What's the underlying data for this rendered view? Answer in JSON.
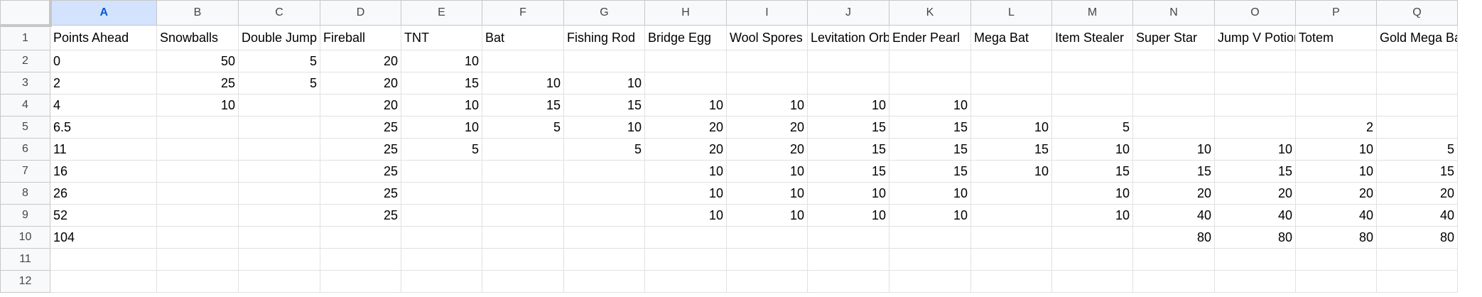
{
  "sheet": {
    "column_headers": [
      "A",
      "B",
      "C",
      "D",
      "E",
      "F",
      "G",
      "H",
      "I",
      "J",
      "K",
      "L",
      "M",
      "N",
      "O",
      "P",
      "Q"
    ],
    "row_headers": [
      "1",
      "2",
      "3",
      "4",
      "5",
      "6",
      "7",
      "8",
      "9",
      "10",
      "11",
      "12"
    ],
    "rows": [
      [
        "Points Ahead",
        "Snowballs",
        "Double Jump",
        "Fireball",
        "TNT",
        "Bat",
        "Fishing Rod",
        "Bridge Egg",
        "Wool Spores",
        "Levitation Orb",
        "Ender Pearl",
        "Mega Bat",
        "Item Stealer",
        "Super Star",
        "Jump V Potion",
        "Totem",
        "Gold Mega Bat"
      ],
      [
        "0",
        "50",
        "5",
        "20",
        "10",
        "",
        "",
        "",
        "",
        "",
        "",
        "",
        "",
        "",
        "",
        "",
        ""
      ],
      [
        "2",
        "25",
        "5",
        "20",
        "15",
        "10",
        "10",
        "",
        "",
        "",
        "",
        "",
        "",
        "",
        "",
        "",
        ""
      ],
      [
        "4",
        "10",
        "",
        "20",
        "10",
        "15",
        "15",
        "10",
        "10",
        "10",
        "10",
        "",
        "",
        "",
        "",
        "",
        ""
      ],
      [
        "6.5",
        "",
        "",
        "25",
        "10",
        "5",
        "10",
        "20",
        "20",
        "15",
        "15",
        "10",
        "5",
        "",
        "",
        "2",
        ""
      ],
      [
        "11",
        "",
        "",
        "25",
        "5",
        "",
        "5",
        "20",
        "20",
        "15",
        "15",
        "15",
        "10",
        "10",
        "10",
        "10",
        "5"
      ],
      [
        "16",
        "",
        "",
        "25",
        "",
        "",
        "",
        "10",
        "10",
        "15",
        "15",
        "10",
        "15",
        "15",
        "15",
        "10",
        "15"
      ],
      [
        "26",
        "",
        "",
        "25",
        "",
        "",
        "",
        "10",
        "10",
        "10",
        "10",
        "",
        "10",
        "20",
        "20",
        "20",
        "20"
      ],
      [
        "52",
        "",
        "",
        "25",
        "",
        "",
        "",
        "10",
        "10",
        "10",
        "10",
        "",
        "10",
        "40",
        "40",
        "40",
        "40"
      ],
      [
        "104",
        "",
        "",
        "",
        "",
        "",
        "",
        "",
        "",
        "",
        "",
        "",
        "",
        "80",
        "80",
        "80",
        "80"
      ],
      [
        "",
        "",
        "",
        "",
        "",
        "",
        "",
        "",
        "",
        "",
        "",
        "",
        "",
        "",
        "",
        "",
        ""
      ],
      [
        "",
        "",
        "",
        "",
        "",
        "",
        "",
        "",
        "",
        "",
        "",
        "",
        "",
        "",
        "",
        "",
        ""
      ]
    ]
  }
}
